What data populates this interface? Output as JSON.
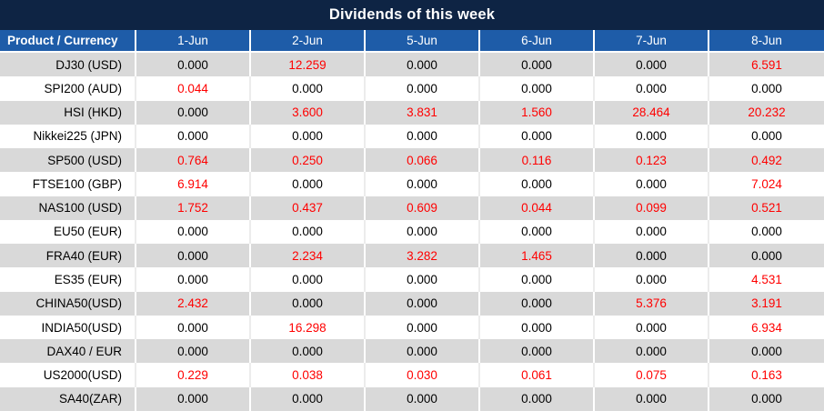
{
  "title": "Dividends of this week",
  "colors": {
    "title_bar": "#0e2444",
    "header_bg": "#1e5ca8",
    "header_text": "#ffffff",
    "stripe_row": "#d9d9d9",
    "plain_row": "#ffffff",
    "zero_value_text": "#000000",
    "nonzero_value_text": "#ff0000"
  },
  "table": {
    "columns": [
      "Product / Currency",
      "1-Jun",
      "2-Jun",
      "5-Jun",
      "6-Jun",
      "7-Jun",
      "8-Jun"
    ],
    "rows": [
      {
        "product": "DJ30 (USD)",
        "values": [
          "0.000",
          "12.259",
          "0.000",
          "0.000",
          "0.000",
          "6.591"
        ]
      },
      {
        "product": "SPI200 (AUD)",
        "values": [
          "0.044",
          "0.000",
          "0.000",
          "0.000",
          "0.000",
          "0.000"
        ]
      },
      {
        "product": "HSI (HKD)",
        "values": [
          "0.000",
          "3.600",
          "3.831",
          "1.560",
          "28.464",
          "20.232"
        ]
      },
      {
        "product": "Nikkei225 (JPN)",
        "values": [
          "0.000",
          "0.000",
          "0.000",
          "0.000",
          "0.000",
          "0.000"
        ]
      },
      {
        "product": "SP500 (USD)",
        "values": [
          "0.764",
          "0.250",
          "0.066",
          "0.116",
          "0.123",
          "0.492"
        ]
      },
      {
        "product": "FTSE100 (GBP)",
        "values": [
          "6.914",
          "0.000",
          "0.000",
          "0.000",
          "0.000",
          "7.024"
        ]
      },
      {
        "product": "NAS100 (USD)",
        "values": [
          "1.752",
          "0.437",
          "0.609",
          "0.044",
          "0.099",
          "0.521"
        ]
      },
      {
        "product": "EU50 (EUR)",
        "values": [
          "0.000",
          "0.000",
          "0.000",
          "0.000",
          "0.000",
          "0.000"
        ]
      },
      {
        "product": "FRA40 (EUR)",
        "values": [
          "0.000",
          "2.234",
          "3.282",
          "1.465",
          "0.000",
          "0.000"
        ]
      },
      {
        "product": "ES35 (EUR)",
        "values": [
          "0.000",
          "0.000",
          "0.000",
          "0.000",
          "0.000",
          "4.531"
        ]
      },
      {
        "product": "CHINA50(USD)",
        "values": [
          "2.432",
          "0.000",
          "0.000",
          "0.000",
          "5.376",
          "3.191"
        ]
      },
      {
        "product": "INDIA50(USD)",
        "values": [
          "0.000",
          "16.298",
          "0.000",
          "0.000",
          "0.000",
          "6.934"
        ]
      },
      {
        "product": "DAX40 / EUR",
        "values": [
          "0.000",
          "0.000",
          "0.000",
          "0.000",
          "0.000",
          "0.000"
        ]
      },
      {
        "product": "US2000(USD)",
        "values": [
          "0.229",
          "0.038",
          "0.030",
          "0.061",
          "0.075",
          "0.163"
        ]
      },
      {
        "product": "SA40(ZAR)",
        "values": [
          "0.000",
          "0.000",
          "0.000",
          "0.000",
          "0.000",
          "0.000"
        ]
      }
    ]
  },
  "chart_data": {
    "type": "table",
    "title": "Dividends of this week",
    "columns": [
      "Product / Currency",
      "1-Jun",
      "2-Jun",
      "5-Jun",
      "6-Jun",
      "7-Jun",
      "8-Jun"
    ],
    "rows": [
      [
        "DJ30 (USD)",
        0.0,
        12.259,
        0.0,
        0.0,
        0.0,
        6.591
      ],
      [
        "SPI200 (AUD)",
        0.044,
        0.0,
        0.0,
        0.0,
        0.0,
        0.0
      ],
      [
        "HSI (HKD)",
        0.0,
        3.6,
        3.831,
        1.56,
        28.464,
        20.232
      ],
      [
        "Nikkei225 (JPN)",
        0.0,
        0.0,
        0.0,
        0.0,
        0.0,
        0.0
      ],
      [
        "SP500 (USD)",
        0.764,
        0.25,
        0.066,
        0.116,
        0.123,
        0.492
      ],
      [
        "FTSE100 (GBP)",
        6.914,
        0.0,
        0.0,
        0.0,
        0.0,
        7.024
      ],
      [
        "NAS100 (USD)",
        1.752,
        0.437,
        0.609,
        0.044,
        0.099,
        0.521
      ],
      [
        "EU50 (EUR)",
        0.0,
        0.0,
        0.0,
        0.0,
        0.0,
        0.0
      ],
      [
        "FRA40 (EUR)",
        0.0,
        2.234,
        3.282,
        1.465,
        0.0,
        0.0
      ],
      [
        "ES35 (EUR)",
        0.0,
        0.0,
        0.0,
        0.0,
        0.0,
        4.531
      ],
      [
        "CHINA50(USD)",
        2.432,
        0.0,
        0.0,
        0.0,
        5.376,
        3.191
      ],
      [
        "INDIA50(USD)",
        0.0,
        16.298,
        0.0,
        0.0,
        0.0,
        6.934
      ],
      [
        "DAX40 / EUR",
        0.0,
        0.0,
        0.0,
        0.0,
        0.0,
        0.0
      ],
      [
        "US2000(USD)",
        0.229,
        0.038,
        0.03,
        0.061,
        0.075,
        0.163
      ],
      [
        "SA40(ZAR)",
        0.0,
        0.0,
        0.0,
        0.0,
        0.0,
        0.0
      ]
    ],
    "value_color_rule": "non-zero values rendered red, zeros black",
    "legend_position": "none",
    "grid": "striped rows"
  }
}
